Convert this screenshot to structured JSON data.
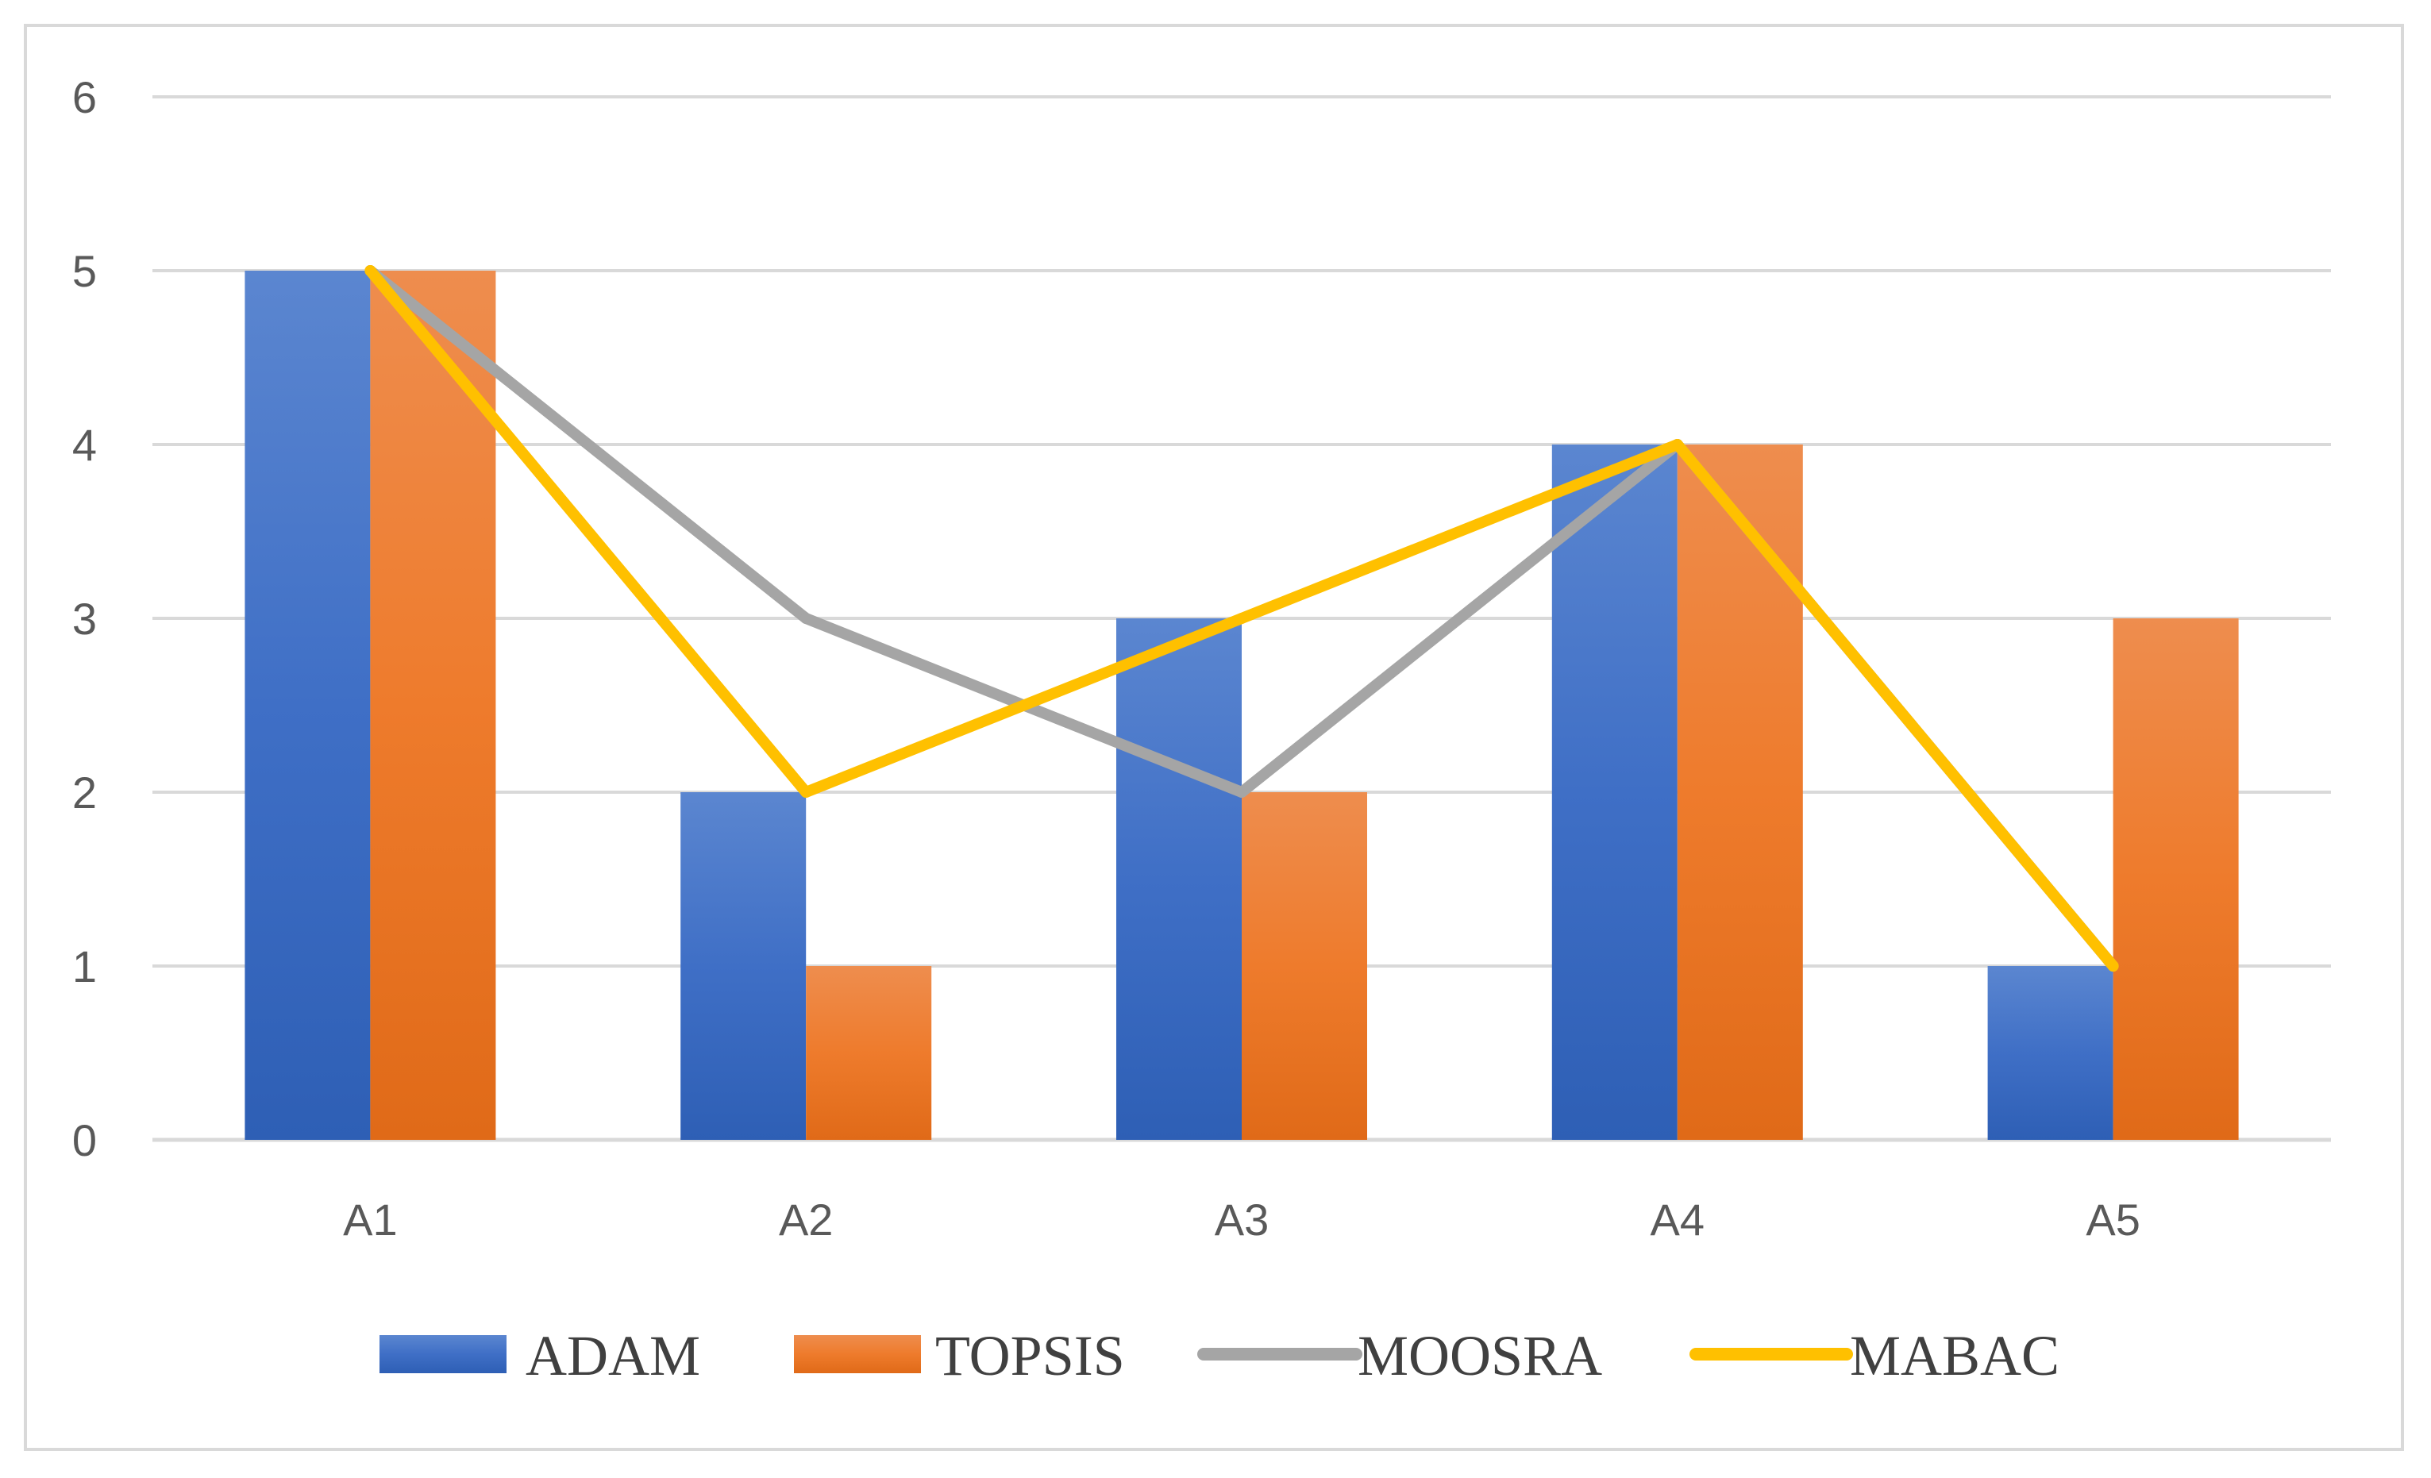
{
  "chart_data": {
    "type": "bar",
    "title": "",
    "xlabel": "",
    "ylabel": "",
    "categories": [
      "A1",
      "A2",
      "A3",
      "A4",
      "A5"
    ],
    "ylim": [
      0,
      6
    ],
    "yticks": [
      0,
      1,
      2,
      3,
      4,
      5,
      6
    ],
    "grid": true,
    "legend_position": "bottom",
    "series": [
      {
        "name": "ADAM",
        "kind": "bar",
        "color": "#4472C4",
        "values": [
          5,
          2,
          3,
          4,
          1
        ]
      },
      {
        "name": "TOPSIS",
        "kind": "bar",
        "color": "#ED7D31",
        "values": [
          5,
          1,
          2,
          4,
          3
        ]
      },
      {
        "name": "MOOSRA",
        "kind": "line",
        "color": "#A5A5A5",
        "values": [
          5,
          3,
          2,
          4,
          1
        ]
      },
      {
        "name": "MABAC",
        "kind": "line",
        "color": "#FFC000",
        "values": [
          5,
          2,
          3,
          4,
          1
        ]
      }
    ]
  }
}
